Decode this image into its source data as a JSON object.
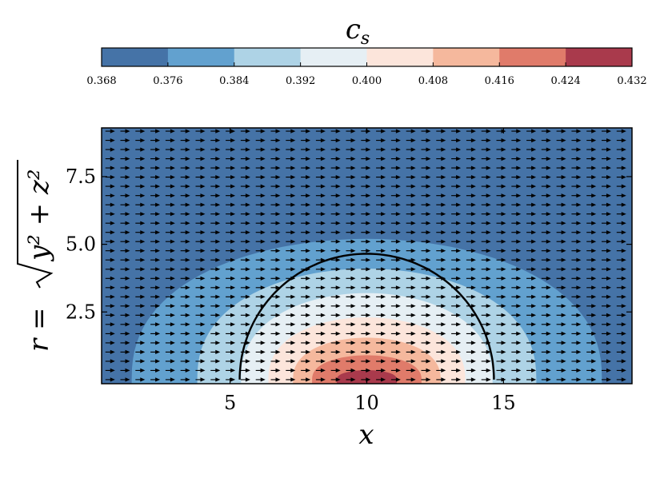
{
  "chart_data": {
    "type": "heatmap",
    "subtype": "filled-contour with quiver overlay",
    "colorbar": {
      "title": "c",
      "title_subscript": "s",
      "ticks": [
        "0.368",
        "0.376",
        "0.384",
        "0.392",
        "0.400",
        "0.408",
        "0.416",
        "0.424",
        "0.432"
      ],
      "levels": [
        0.368,
        0.376,
        0.384,
        0.392,
        0.4,
        0.408,
        0.416,
        0.424,
        0.432
      ],
      "colors": [
        "#4573a7",
        "#62a1cf",
        "#aed3e6",
        "#e6eff4",
        "#fce5db",
        "#f5b89d",
        "#e07b6a",
        "#a93a4c"
      ],
      "placement": "top"
    },
    "xaxis": {
      "label": "x",
      "ticks": [
        5,
        10,
        15
      ],
      "tick_labels": [
        "5",
        "10",
        "15"
      ],
      "range": [
        0.3,
        19.7
      ]
    },
    "yaxis": {
      "label_prefix": "r =",
      "label_radicand": "y² + z²",
      "ticks": [
        2.5,
        5.0,
        7.5
      ],
      "tick_labels": [
        "2.5",
        "5.0",
        "7.5"
      ],
      "range": [
        -0.15,
        9.3
      ]
    },
    "field": {
      "center_x": 10.0,
      "peak_value": 0.432,
      "background_value": 0.372
    },
    "quiver": {
      "direction": "+x",
      "color": "#000000"
    },
    "circle": {
      "center_x": 10.0,
      "center_r": 0.0,
      "radius": 4.65,
      "color": "#000000"
    },
    "grid": false
  }
}
